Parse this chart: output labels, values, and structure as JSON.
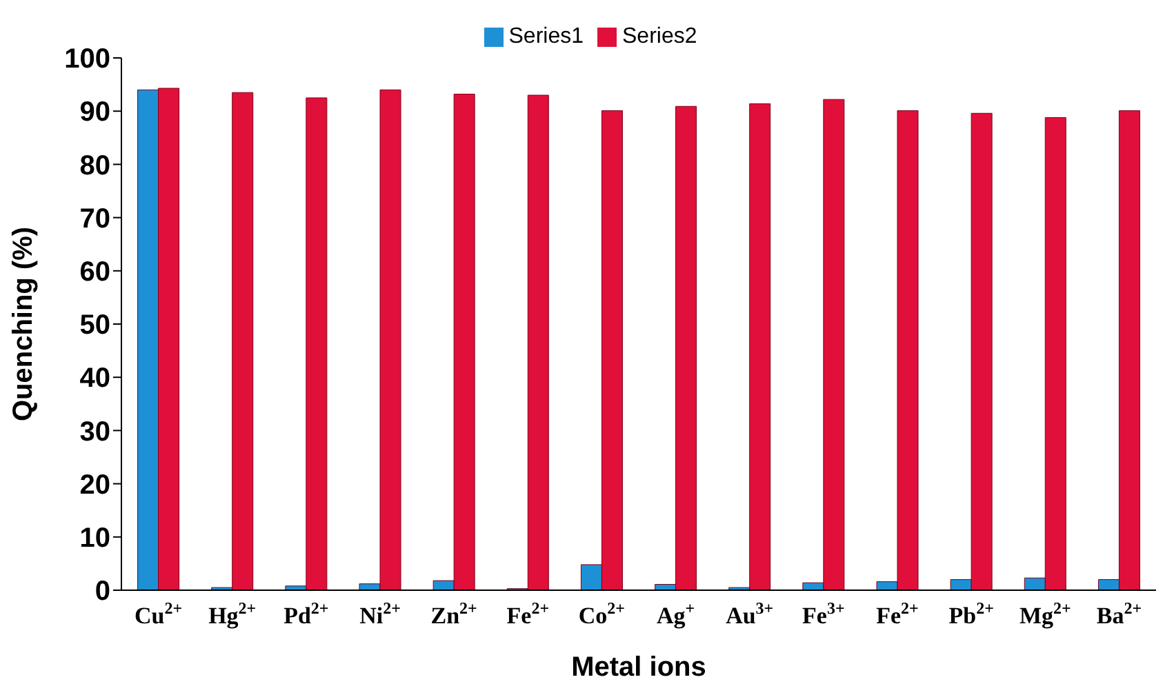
{
  "chart_data": {
    "type": "bar",
    "xlabel": "Metal ions",
    "ylabel": "Quenching (%)",
    "categories": [
      "Cu$^{2+}$",
      "Hg$^{2+}$",
      "Pd$^{2+}$",
      "Ni$^{2+}$",
      "Zn$^{2+}$",
      "Fe$^{2+}$",
      "Co$^{2+}$",
      "Ag$^{+}$",
      "Au$^{3+}$",
      "Fe$^{3+}$",
      "Fe$^{2+}$",
      "Pb$^{2+}$",
      "Mg$^{2+}$",
      "Ba$^{2+}$"
    ],
    "series": [
      {
        "name": "Series1",
        "color": "#1e90d6",
        "values": [
          94,
          0.5,
          0.8,
          1.2,
          1.8,
          0.3,
          4.8,
          1.1,
          0.5,
          1.4,
          1.6,
          2.0,
          2.3,
          2.0
        ]
      },
      {
        "name": "Series2",
        "color": "#e0103a",
        "values": [
          94.3,
          93.5,
          92.5,
          94,
          93.2,
          93,
          90.1,
          90.9,
          91.4,
          92.2,
          90.1,
          89.6,
          88.8,
          90.1
        ]
      }
    ],
    "ylim": [
      0,
      100
    ],
    "yticks": [
      0,
      10,
      20,
      30,
      40,
      50,
      60,
      70,
      80,
      90,
      100
    ],
    "grid": false,
    "legend": "top"
  }
}
